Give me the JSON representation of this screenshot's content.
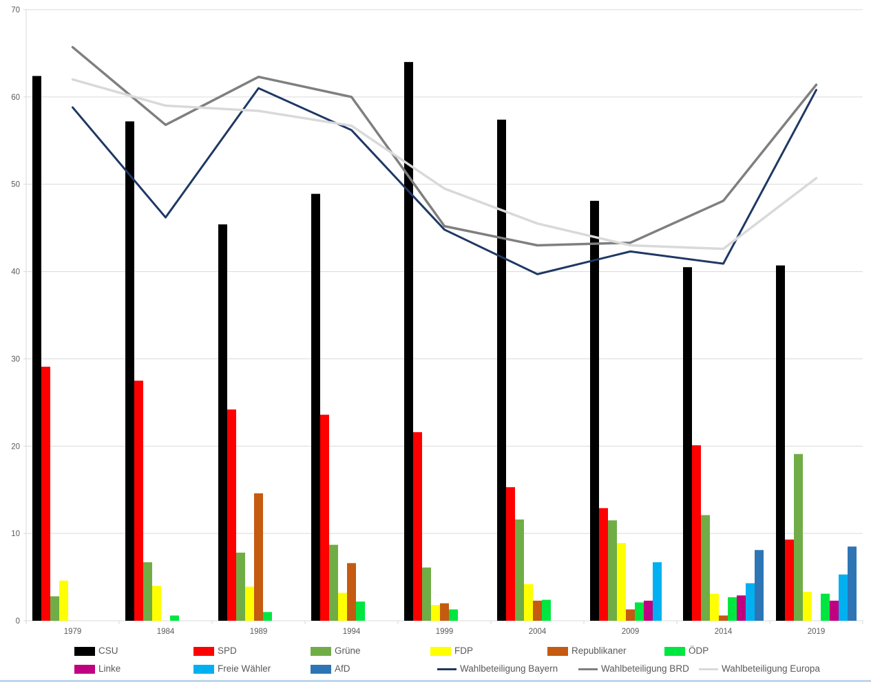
{
  "chart": {
    "background": "#FFFFFF",
    "grid_color": "#D9D9D9",
    "axis_color": "#D9D9D9",
    "label_color": "#595959",
    "bottom_border_color": "#BDD7EE"
  },
  "chart_data": {
    "type": "bar+line",
    "title": "",
    "xlabel": "",
    "ylabel": "",
    "categories": [
      "1979",
      "1984",
      "1989",
      "1994",
      "1999",
      "2004",
      "2009",
      "2014",
      "2019"
    ],
    "ylim": [
      0,
      70
    ],
    "y_ticks": [
      0,
      10,
      20,
      30,
      40,
      50,
      60,
      70
    ],
    "grid": true,
    "legend_position": "bottom",
    "series": [
      {
        "name": "CSU",
        "type": "bar",
        "color": "#000000",
        "values": [
          62.4,
          57.2,
          45.4,
          48.9,
          64.0,
          57.4,
          48.1,
          40.5,
          40.7
        ]
      },
      {
        "name": "SPD",
        "type": "bar",
        "color": "#FF0000",
        "values": [
          29.1,
          27.5,
          24.2,
          23.6,
          21.6,
          15.3,
          12.9,
          20.1,
          9.3
        ]
      },
      {
        "name": "Grüne",
        "type": "bar",
        "color": "#70AD47",
        "values": [
          2.8,
          6.7,
          7.8,
          8.7,
          6.1,
          11.6,
          11.5,
          12.1,
          19.1
        ]
      },
      {
        "name": "FDP",
        "type": "bar",
        "color": "#FFFF00",
        "values": [
          4.6,
          4.0,
          3.9,
          3.2,
          1.8,
          4.2,
          8.9,
          3.1,
          3.3
        ]
      },
      {
        "name": "Republikaner",
        "type": "bar",
        "color": "#C55A11",
        "values": [
          null,
          null,
          14.6,
          6.6,
          2.0,
          2.3,
          1.3,
          0.6,
          null
        ]
      },
      {
        "name": "ÖDP",
        "type": "bar",
        "color": "#00E640",
        "values": [
          null,
          0.6,
          1.0,
          2.2,
          1.3,
          2.4,
          2.1,
          2.7,
          3.1
        ]
      },
      {
        "name": "Linke",
        "type": "bar",
        "color": "#C00080",
        "values": [
          null,
          null,
          null,
          null,
          null,
          null,
          2.3,
          2.9,
          2.3
        ]
      },
      {
        "name": "Freie Wähler",
        "type": "bar",
        "color": "#00B0F0",
        "values": [
          null,
          null,
          null,
          null,
          null,
          null,
          6.7,
          4.3,
          5.3
        ]
      },
      {
        "name": "AfD",
        "type": "bar",
        "color": "#2E75B6",
        "values": [
          null,
          null,
          null,
          null,
          null,
          null,
          null,
          8.1,
          8.5
        ]
      },
      {
        "name": "Wahlbeteiligung Bayern",
        "type": "line",
        "color": "#1F3864",
        "stroke_width": 3,
        "values": [
          58.8,
          46.2,
          61.0,
          56.2,
          44.8,
          39.7,
          42.3,
          40.9,
          60.8
        ]
      },
      {
        "name": "Wahlbeteiligung BRD",
        "type": "line",
        "color": "#7F7F7F",
        "stroke_width": 3.5,
        "values": [
          65.7,
          56.8,
          62.3,
          60.0,
          45.2,
          43.0,
          43.3,
          48.1,
          61.4
        ]
      },
      {
        "name": "Wahlbeteiligung Europa",
        "type": "line",
        "color": "#D9D9D9",
        "stroke_width": 3.5,
        "values": [
          62.0,
          59.0,
          58.4,
          56.7,
          49.5,
          45.5,
          43.0,
          42.6,
          50.7
        ]
      }
    ]
  }
}
